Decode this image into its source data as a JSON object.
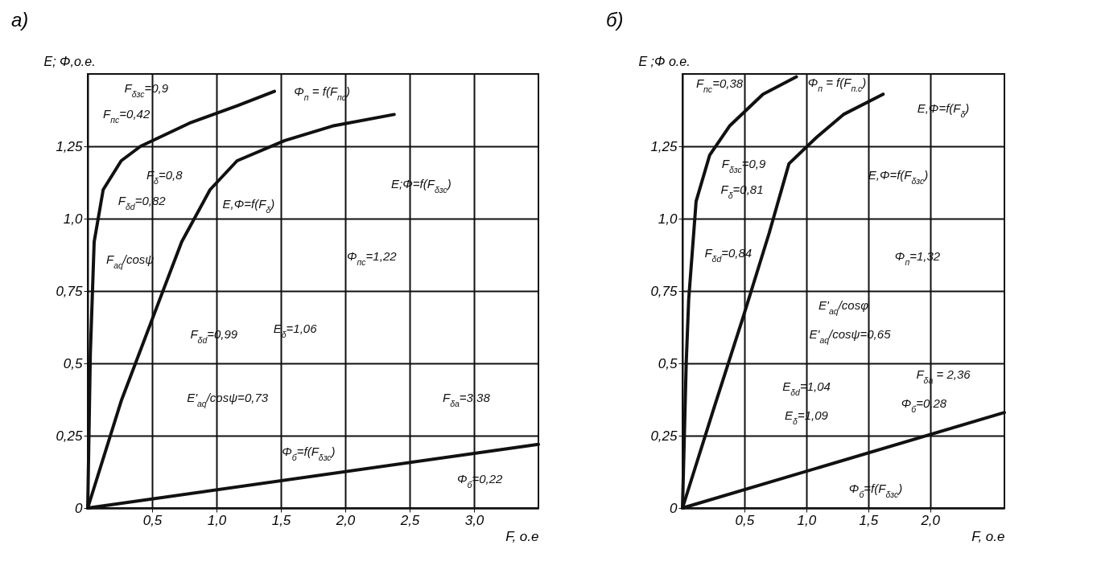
{
  "chart_data": [
    {
      "type": "line",
      "title": "а)",
      "xlabel": "F, o.e",
      "ylabel": "E; Φ,o.e.",
      "xlim": [
        0,
        3.5
      ],
      "ylim": [
        0,
        1.5
      ],
      "xticks": [
        {
          "value": 0.5,
          "label": "0,5"
        },
        {
          "value": 1,
          "label": "1,0"
        },
        {
          "value": 1.5,
          "label": "1,5"
        },
        {
          "value": 2,
          "label": "2,0"
        },
        {
          "value": 2.5,
          "label": "2,5"
        },
        {
          "value": 3,
          "label": "3,0"
        }
      ],
      "yticks": [
        0,
        {
          "value": 0.25,
          "label": "0,25"
        },
        {
          "value": 0.5,
          "label": "0,5"
        },
        {
          "value": 0.75,
          "label": "0,75"
        },
        {
          "value": 1,
          "label": "1,0"
        },
        {
          "value": 1.25,
          "label": "1,25"
        }
      ],
      "grid": true,
      "series": [
        {
          "name": "Φ$_{п}$ = f(F$_{пс}$)",
          "color": "#111111",
          "x": [
            0,
            0.02,
            0.05,
            0.12,
            0.26,
            0.41,
            0.79,
            1.16,
            1.45
          ],
          "values": [
            0,
            0.53,
            0.92,
            1.1,
            1.2,
            1.25,
            1.33,
            1.39,
            1.44
          ]
        },
        {
          "name": "E,Φ=f(F$_{δ}$)",
          "color": "#111111",
          "x": [
            0,
            0.26,
            0.55,
            0.73,
            0.95,
            1.16,
            1.53,
            1.9,
            2.38
          ],
          "values": [
            0,
            0.37,
            0.71,
            0.92,
            1.1,
            1.2,
            1.27,
            1.32,
            1.36
          ]
        },
        {
          "name": "Φ$_{б}$=f(F$_{δзс}$)",
          "color": "#111111",
          "x": [
            0,
            3.5
          ],
          "values": [
            0,
            0.22
          ]
        }
      ],
      "annotations": [
        "F$_{δзс}$=0,9",
        "F$_{пс}$=0,42",
        "F$_{δ}$=0,8",
        "F$_{δd}$=0,82",
        "F$_{aq}$/cosψ",
        "E;Φ=f(F$_{δзс}$)",
        "E'$_{aq}$/cosψ=0,73",
        "F$_{δd}$=0,99",
        "E$_{δ}$=1,06",
        "Φ$_{пс}$=1,22",
        "F$_{δa}$=3,38",
        "Φ$_{б}$=0,22"
      ]
    },
    {
      "type": "line",
      "title": "б)",
      "xlabel": "F, o.e",
      "ylabel": "E ;Φ o.e.",
      "xlim": [
        0,
        2.6
      ],
      "ylim": [
        0,
        1.5
      ],
      "xticks": [
        {
          "value": 0.5,
          "label": "0,5"
        },
        {
          "value": 1,
          "label": "1,0"
        },
        {
          "value": 1.5,
          "label": "1,5"
        },
        {
          "value": 2,
          "label": "2,0"
        }
      ],
      "yticks": [
        0,
        {
          "value": 0.25,
          "label": "0,25"
        },
        {
          "value": 0.5,
          "label": "0,5"
        },
        {
          "value": 0.75,
          "label": "0,75"
        },
        {
          "value": 1,
          "label": "1,0"
        },
        {
          "value": 1.25,
          "label": "1,25"
        }
      ],
      "grid": true,
      "series": [
        {
          "name": "Φ$_{п}$ = f(F$_{п.с}$)",
          "color": "#111111",
          "x": [
            0,
            0.03,
            0.05,
            0.11,
            0.22,
            0.38,
            0.65,
            0.92
          ],
          "values": [
            0,
            0.5,
            0.72,
            1.06,
            1.22,
            1.32,
            1.43,
            1.49
          ]
        },
        {
          "name": "E,Φ=f(F$_{δ}$)",
          "color": "#111111",
          "x": [
            0,
            0.25,
            0.49,
            0.7,
            0.86,
            1.08,
            1.3,
            1.62
          ],
          "values": [
            0,
            0.34,
            0.66,
            0.95,
            1.19,
            1.28,
            1.36,
            1.43
          ]
        },
        {
          "name": "Φ$_{б}$=f(F$_{δзс}$)",
          "color": "#111111",
          "x": [
            0,
            2.6
          ],
          "values": [
            0,
            0.33
          ]
        }
      ],
      "annotations": [
        "F$_{пс}$=0,38",
        "F$_{δзс}$=0,9",
        "F$_{δ}$=0,81",
        "F$_{δd}$=0,84",
        "E,Φ=f(F$_{δзс}$)",
        "Φ$_{п}$=1,32",
        "E'$_{aq}$/cosφ",
        "E'$_{aq}$/cosψ=0,65",
        "E$_{δd}$=1,04",
        "E$_{δ}$=1,09",
        "F$_{δa}$ = 2,36",
        "Φ$_{б}$=0,28"
      ]
    }
  ]
}
